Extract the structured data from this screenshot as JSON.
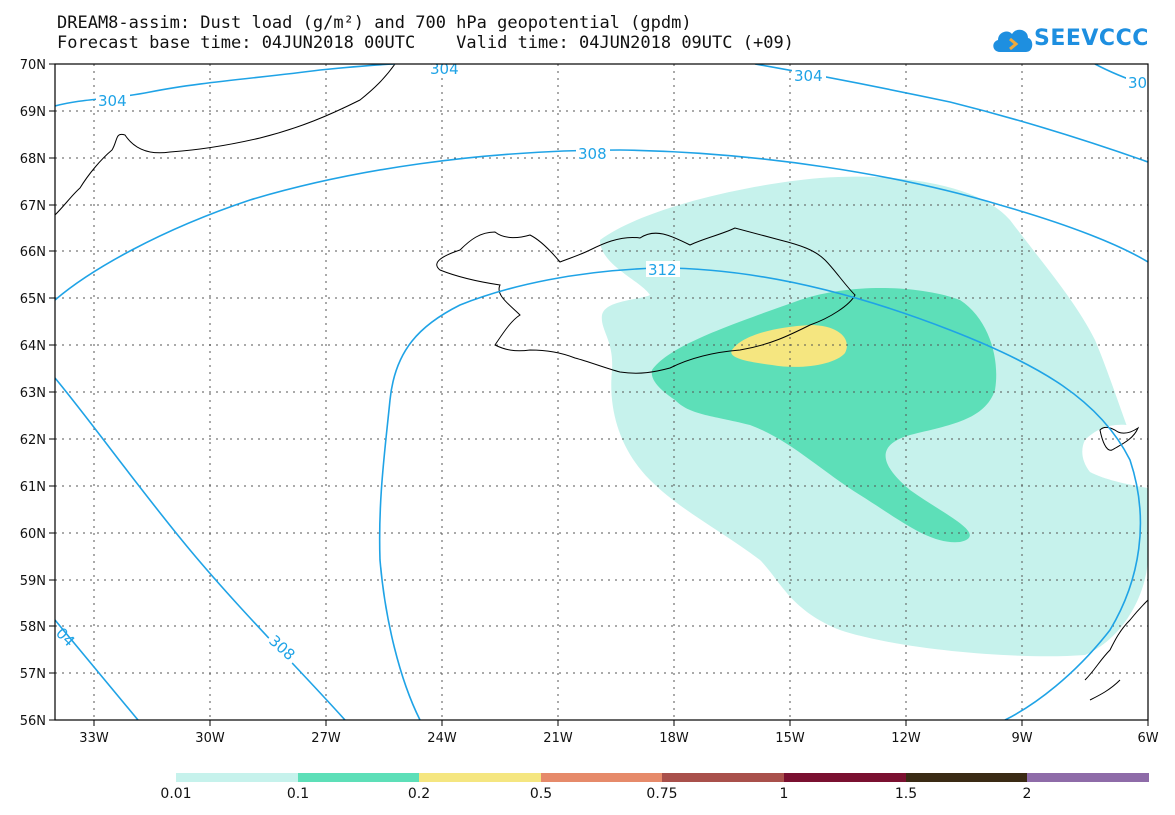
{
  "title_line1": "DREAM8-assim: Dust load (g/m²) and 700 hPa geopotential (gpdm)",
  "title_line2": "Forecast base time: 04JUN2018 00UTC    Valid time: 04JUN2018 09UTC (+09)",
  "logo": {
    "text": "SEEVCCC",
    "icon": "cloud-icon"
  },
  "map": {
    "lat_labels": [
      "70N",
      "69N",
      "68N",
      "67N",
      "66N",
      "65N",
      "64N",
      "63N",
      "62N",
      "61N",
      "60N",
      "59N",
      "58N",
      "57N",
      "56N"
    ],
    "lon_labels": [
      "33W",
      "30W",
      "27W",
      "24W",
      "21W",
      "18W",
      "15W",
      "12W",
      "9W",
      "6W"
    ],
    "contour_labels": [
      "304",
      "304",
      "304",
      "30",
      "308",
      "312",
      "308",
      "04"
    ],
    "contour_color": "#1fa3e6",
    "coast_color": "#000000"
  },
  "colorbar": {
    "labels": [
      "0.01",
      "0.1",
      "0.2",
      "0.5",
      "0.75",
      "1",
      "1.5",
      "2"
    ],
    "colors": [
      "#c6f2ec",
      "#5ddfb8",
      "#f5e680",
      "#e68a6a",
      "#a9504b",
      "#7a1030",
      "#3a2a14",
      "#8e6ba8"
    ]
  }
}
